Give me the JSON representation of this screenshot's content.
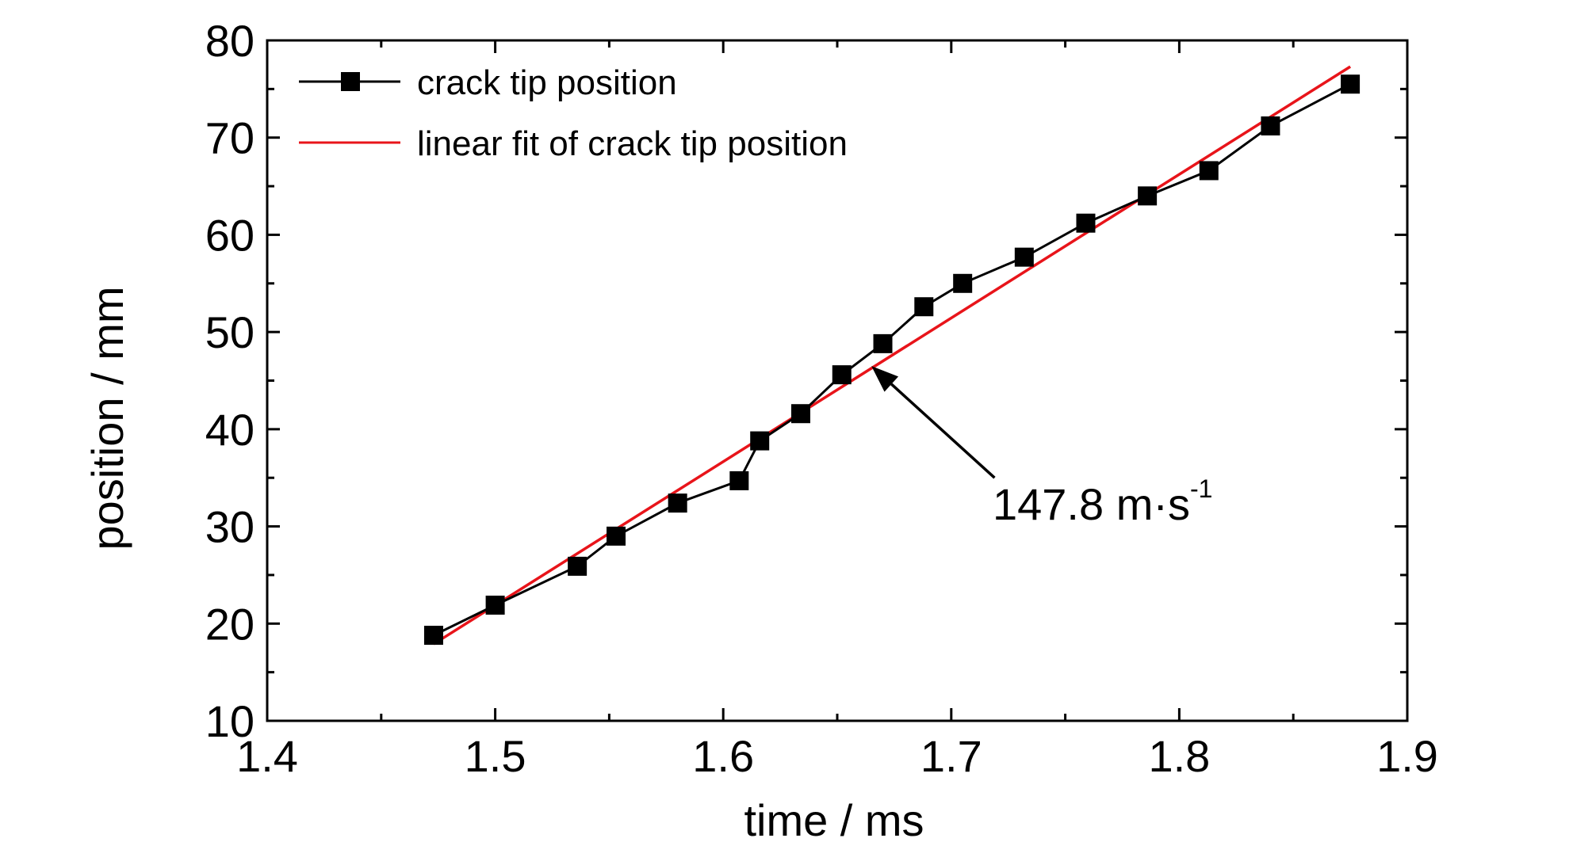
{
  "chart_data": {
    "type": "line",
    "xlabel": "time / ms",
    "ylabel": "position / mm",
    "xlim": [
      1.4,
      1.9
    ],
    "ylim": [
      10,
      80
    ],
    "x_ticks": [
      "1.4",
      "1.5",
      "1.6",
      "1.7",
      "1.8",
      "1.9"
    ],
    "y_ticks": [
      "10",
      "20",
      "30",
      "40",
      "50",
      "60",
      "70",
      "80"
    ],
    "grid": false,
    "legend_position": "top-left",
    "series": [
      {
        "name": "crack tip position",
        "color": "#000000",
        "marker": "square",
        "x": [
          1.473,
          1.5,
          1.536,
          1.553,
          1.58,
          1.607,
          1.616,
          1.634,
          1.652,
          1.67,
          1.688,
          1.705,
          1.732,
          1.759,
          1.786,
          1.813,
          1.84,
          1.875
        ],
        "y": [
          18.8,
          21.9,
          25.9,
          29.0,
          32.4,
          34.7,
          38.8,
          41.6,
          45.6,
          48.8,
          52.6,
          55.0,
          57.7,
          61.2,
          64.0,
          66.6,
          71.2,
          75.5
        ]
      },
      {
        "name": "linear fit of crack tip position",
        "color": "#e8141a",
        "marker": "none",
        "x": [
          1.473,
          1.875
        ],
        "y": [
          17.9,
          77.3
        ]
      }
    ],
    "annotation": {
      "text_main": "147.8 m·s",
      "text_sup": "-1",
      "arrow_from": [
        1.719,
        35.0
      ],
      "arrow_to": [
        1.665,
        46.5
      ]
    }
  }
}
